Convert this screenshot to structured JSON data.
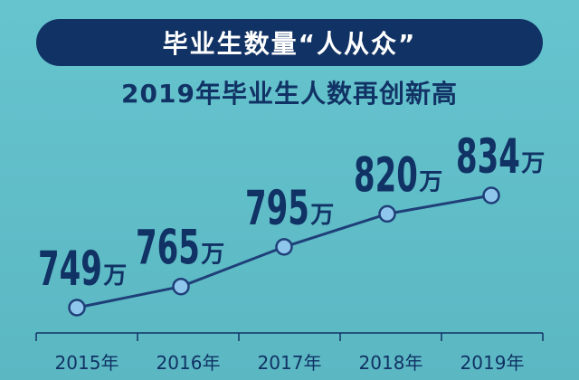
{
  "header": {
    "title": "毕业生数量“人从众”",
    "subtitle": "2019年毕业生人数再创新高"
  },
  "colors": {
    "background": "#5fbcc7",
    "navy": "#113264",
    "line": "#1f3f78",
    "marker_fill": "#8fc7ec"
  },
  "chart_data": {
    "type": "line",
    "title": "2019年毕业生人数再创新高",
    "categories": [
      "2015年",
      "2016年",
      "2017年",
      "2018年",
      "2019年"
    ],
    "series": [
      {
        "values": [
          749,
          765,
          795,
          820,
          834
        ]
      }
    ],
    "value_labels": [
      "749",
      "765",
      "795",
      "820",
      "834"
    ],
    "unit": "万",
    "xlabel": "",
    "ylabel": "",
    "grid": false,
    "legend": "none"
  }
}
